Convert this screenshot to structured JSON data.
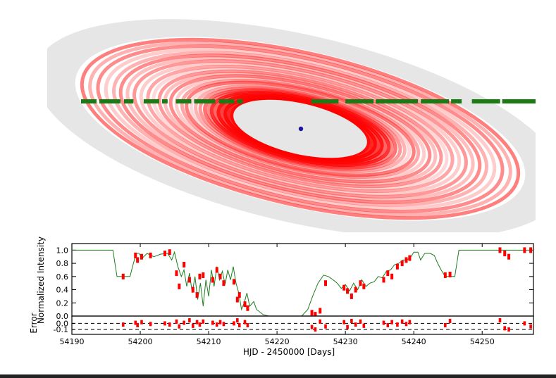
{
  "colors": {
    "disk": "#e6e6e6",
    "ring_red": "#ff0000",
    "path_green": "#1a7a14",
    "model_line": "#1e7d1e",
    "data_points": "#ff0000",
    "star": "#1a1a99"
  },
  "chart_data": [
    {
      "type": "diagram",
      "name": "ring-system",
      "rings": [
        {
          "r": 0.3,
          "alpha": 0.95
        },
        {
          "r": 0.315,
          "alpha": 0.85
        },
        {
          "r": 0.33,
          "alpha": 0.95
        },
        {
          "r": 0.345,
          "alpha": 0.75
        },
        {
          "r": 0.36,
          "alpha": 0.9
        },
        {
          "r": 0.375,
          "alpha": 0.6
        },
        {
          "r": 0.39,
          "alpha": 0.8
        },
        {
          "r": 0.405,
          "alpha": 0.45
        },
        {
          "r": 0.42,
          "alpha": 0.55
        },
        {
          "r": 0.44,
          "alpha": 0.4
        },
        {
          "r": 0.46,
          "alpha": 0.3
        },
        {
          "r": 0.48,
          "alpha": 0.15
        },
        {
          "r": 0.5,
          "alpha": 0.5
        },
        {
          "r": 0.52,
          "alpha": 0.35
        },
        {
          "r": 0.545,
          "alpha": 0.2
        },
        {
          "r": 0.57,
          "alpha": 0.45
        },
        {
          "r": 0.595,
          "alpha": 0.25
        },
        {
          "r": 0.62,
          "alpha": 0.4
        },
        {
          "r": 0.645,
          "alpha": 0.15
        },
        {
          "r": 0.67,
          "alpha": 0.35
        },
        {
          "r": 0.7,
          "alpha": 0.2
        },
        {
          "r": 0.73,
          "alpha": 0.4
        },
        {
          "r": 0.76,
          "alpha": 0.25
        },
        {
          "r": 0.79,
          "alpha": 0.45
        },
        {
          "r": 0.82,
          "alpha": 0.3
        },
        {
          "r": 0.855,
          "alpha": 0.2
        },
        {
          "r": 0.89,
          "alpha": 0.45
        },
        {
          "r": 0.925,
          "alpha": 0.3
        },
        {
          "r": 0.96,
          "alpha": 0.5
        }
      ],
      "path_gaps": [
        [
          54199,
          54200.5
        ],
        [
          54204,
          54205.2
        ],
        [
          54215,
          54225
        ],
        [
          54229,
          54230
        ],
        [
          54247,
          54248.5
        ]
      ]
    },
    {
      "type": "line",
      "name": "light-curve",
      "ylabel": "Normalized Intensity",
      "ylim": [
        0.0,
        1.1
      ],
      "xlim": [
        54190,
        54257.5
      ],
      "yticks": [
        "0.0",
        "0.2",
        "0.4",
        "0.6",
        "0.8",
        "1.0"
      ],
      "model": {
        "x": [
          54190,
          54196,
          54196.6,
          54198.5,
          54199,
          54199.4,
          54199.8,
          54200.3,
          54201,
          54202,
          54203,
          54204,
          54204.6,
          54205,
          54205.5,
          54206,
          54206.4,
          54206.8,
          54207.2,
          54207.6,
          54208,
          54208.4,
          54208.8,
          54209.2,
          54209.6,
          54210,
          54210.4,
          54210.8,
          54211.2,
          54211.6,
          54212,
          54212.4,
          54212.8,
          54213.2,
          54213.6,
          54214,
          54214.4,
          54214.8,
          54215.2,
          54215.6,
          54216,
          54216.6,
          54217,
          54218,
          54218.8,
          54223.6,
          54224.5,
          54225.2,
          54226,
          54226.8,
          54227.5,
          54228.2,
          54228.8,
          54229.4,
          54230,
          54230.6,
          54231.2,
          54231.8,
          54232.4,
          54233,
          54233.6,
          54234.2,
          54234.8,
          54235.4,
          54236,
          54236.6,
          54237.2,
          54237.8,
          54238.4,
          54239,
          54239.6,
          54240,
          54240.6,
          54241,
          54241.6,
          54242.4,
          54243,
          54243.5,
          54244,
          54244.6,
          54245.4,
          54246,
          54246.6,
          54250,
          54257.5
        ],
        "y": [
          1.0,
          1.0,
          0.6,
          0.6,
          0.8,
          0.95,
          0.95,
          0.88,
          0.95,
          0.9,
          0.94,
          0.95,
          0.85,
          0.97,
          0.75,
          0.6,
          0.7,
          0.45,
          0.65,
          0.35,
          0.6,
          0.25,
          0.5,
          0.15,
          0.55,
          0.3,
          0.7,
          0.45,
          0.75,
          0.55,
          0.68,
          0.48,
          0.7,
          0.55,
          0.75,
          0.5,
          0.35,
          0.1,
          0.2,
          0.35,
          0.15,
          0.22,
          0.1,
          0.02,
          0.0,
          0.0,
          0.1,
          0.3,
          0.5,
          0.62,
          0.6,
          0.55,
          0.5,
          0.42,
          0.48,
          0.38,
          0.5,
          0.4,
          0.55,
          0.45,
          0.5,
          0.52,
          0.6,
          0.58,
          0.68,
          0.7,
          0.78,
          0.8,
          0.85,
          0.85,
          0.9,
          0.97,
          0.97,
          0.85,
          0.95,
          0.95,
          0.92,
          0.8,
          0.7,
          0.6,
          0.6,
          0.6,
          1.0,
          1.0,
          1.0
        ]
      },
      "points": {
        "x": [
          54197.5,
          54199.3,
          54199.6,
          54200.2,
          54201.5,
          54203.6,
          54204.3,
          54205.3,
          54205.7,
          54206.4,
          54207.2,
          54207.7,
          54208.3,
          54208.7,
          54209.2,
          54210.6,
          54211.2,
          54211.7,
          54212.2,
          54213.7,
          54214.2,
          54214.5,
          54215.3,
          54215.7,
          54225.1,
          54225.6,
          54226.3,
          54227.1,
          54229.8,
          54230.3,
          54230.9,
          54231.5,
          54232.2,
          54232.7,
          54235.6,
          54236.2,
          54236.8,
          54237.6,
          54238.3,
          54238.9,
          54239.4,
          54244.6,
          54245.3,
          54252.6,
          54253.3,
          54253.9,
          54256.2,
          54257.1
        ],
        "y": [
          0.6,
          0.92,
          0.85,
          0.9,
          0.92,
          0.95,
          0.97,
          0.65,
          0.45,
          0.78,
          0.55,
          0.4,
          0.32,
          0.6,
          0.62,
          0.55,
          0.7,
          0.6,
          0.5,
          0.52,
          0.25,
          0.32,
          0.18,
          0.12,
          0.05,
          0.02,
          0.08,
          0.5,
          0.43,
          0.38,
          0.3,
          0.4,
          0.5,
          0.45,
          0.55,
          0.65,
          0.6,
          0.75,
          0.8,
          0.85,
          0.88,
          0.62,
          0.63,
          1.0,
          0.95,
          0.9,
          1.0,
          1.0
        ]
      }
    },
    {
      "type": "scatter",
      "name": "residuals",
      "ylabel": "Error",
      "ylim": [
        -0.18,
        0.12
      ],
      "yticks": [
        "0.0",
        "-0.1"
      ],
      "dashed_lines": [
        0.0,
        -0.1
      ],
      "x": [
        54197.5,
        54199.3,
        54199.6,
        54200.2,
        54201.5,
        54203.6,
        54204.3,
        54205.3,
        54205.7,
        54206.4,
        54207.2,
        54207.7,
        54208.3,
        54208.7,
        54209.2,
        54210.6,
        54211.2,
        54211.7,
        54212.2,
        54213.7,
        54214.2,
        54214.5,
        54215.3,
        54215.7,
        54225.1,
        54225.6,
        54226.3,
        54227.1,
        54229.8,
        54230.3,
        54230.9,
        54231.5,
        54232.2,
        54232.7,
        54235.6,
        54236.2,
        54236.8,
        54237.6,
        54238.3,
        54238.9,
        54239.4,
        54244.6,
        54245.3,
        54252.6,
        54253.3,
        54253.9,
        54256.2,
        54257.1
      ],
      "y": [
        -0.02,
        0.01,
        -0.03,
        0.02,
        -0.01,
        0.0,
        -0.02,
        0.03,
        -0.05,
        0.01,
        0.05,
        -0.04,
        0.02,
        -0.02,
        0.03,
        0.01,
        -0.02,
        0.02,
        -0.01,
        0.0,
        0.05,
        -0.03,
        0.02,
        -0.03,
        -0.06,
        -0.1,
        0.03,
        -0.05,
        0.02,
        -0.06,
        0.04,
        -0.02,
        0.03,
        -0.04,
        0.01,
        -0.03,
        0.02,
        -0.02,
        0.03,
        -0.01,
        0.02,
        -0.03,
        0.04,
        0.05,
        -0.08,
        -0.1,
        0.0,
        -0.05
      ]
    }
  ],
  "xaxis": {
    "label": "HJD - 2450000 [Days]",
    "ticks": [
      54190,
      54200,
      54210,
      54220,
      54230,
      54240,
      54250
    ]
  }
}
